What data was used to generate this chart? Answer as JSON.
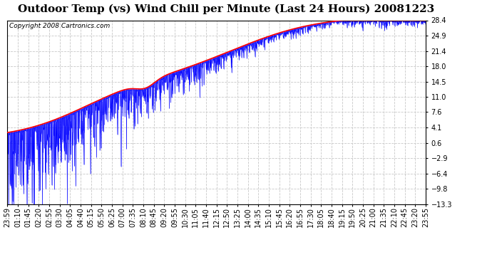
{
  "title": "Outdoor Temp (vs) Wind Chill per Minute (Last 24 Hours) 20081223",
  "copyright_text": "Copyright 2008 Cartronics.com",
  "yticks": [
    28.4,
    24.9,
    21.4,
    18.0,
    14.5,
    11.0,
    7.6,
    4.1,
    0.6,
    -2.9,
    -6.4,
    -9.8,
    -13.3
  ],
  "ymin": -13.3,
  "ymax": 28.4,
  "x_labels": [
    "23:59",
    "01:10",
    "01:45",
    "02:20",
    "02:55",
    "03:30",
    "04:05",
    "04:40",
    "05:15",
    "05:50",
    "06:25",
    "07:00",
    "07:35",
    "08:10",
    "08:45",
    "09:20",
    "09:55",
    "10:30",
    "11:05",
    "11:40",
    "12:15",
    "12:50",
    "13:25",
    "14:00",
    "14:35",
    "15:10",
    "15:45",
    "16:20",
    "16:55",
    "17:30",
    "18:05",
    "18:40",
    "19:15",
    "19:50",
    "20:25",
    "21:00",
    "21:35",
    "22:10",
    "22:45",
    "23:20",
    "23:55"
  ],
  "bg_color": "#ffffff",
  "grid_color": "#c8c8c8",
  "blue_color": "#0000ff",
  "red_color": "#ff0000",
  "title_fontsize": 11,
  "tick_fontsize": 7,
  "copyright_fontsize": 6.5
}
